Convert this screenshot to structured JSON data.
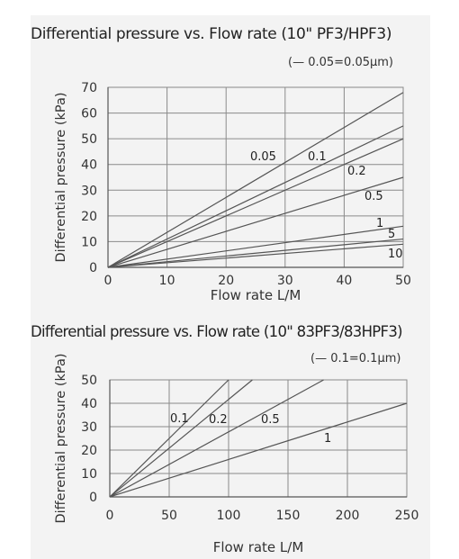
{
  "colors": {
    "line": "#555555",
    "grid": "#8a8a8a",
    "panel": "#f3f3f3",
    "text": "#333333"
  },
  "chart_data": [
    {
      "type": "line",
      "title": "Differential pressure vs. Flow rate (10\" PF3/HPF3)",
      "note": "(— 0.05=0.05µm)",
      "xlabel": "Flow rate L/M",
      "ylabel": "Differential pressure (kPa)",
      "xlim": [
        0,
        50
      ],
      "ylim": [
        0,
        70
      ],
      "xticks": [
        0,
        10,
        20,
        30,
        40,
        50
      ],
      "yticks": [
        0,
        10,
        20,
        30,
        40,
        50,
        60,
        70
      ],
      "grid": true,
      "series": [
        {
          "name": "0.05",
          "x": [
            0,
            50
          ],
          "y": [
            0,
            68
          ]
        },
        {
          "name": "0.1",
          "x": [
            0,
            50
          ],
          "y": [
            0,
            55
          ]
        },
        {
          "name": "0.2",
          "x": [
            0,
            50
          ],
          "y": [
            0,
            50
          ]
        },
        {
          "name": "0.5",
          "x": [
            0,
            50
          ],
          "y": [
            0,
            35
          ]
        },
        {
          "name": "1",
          "x": [
            0,
            50
          ],
          "y": [
            0,
            16
          ]
        },
        {
          "name": "5",
          "x": [
            0,
            50
          ],
          "y": [
            0,
            11
          ]
        },
        {
          "name": "10",
          "x": [
            0,
            50
          ],
          "y": [
            0,
            9
          ]
        }
      ]
    },
    {
      "type": "line",
      "title": "Differential pressure vs. Flow rate (10\" 83PF3/83HPF3)",
      "note": "(— 0.1=0.1µm)",
      "xlabel": "Flow rate L/M",
      "ylabel": "Differential pressure (kPa)",
      "xlim": [
        0,
        250
      ],
      "ylim": [
        0,
        50
      ],
      "xticks": [
        0,
        50,
        100,
        150,
        200,
        250
      ],
      "yticks": [
        0,
        10,
        20,
        30,
        40,
        50
      ],
      "grid": true,
      "series": [
        {
          "name": "0.1",
          "x": [
            0,
            100
          ],
          "y": [
            0,
            50
          ]
        },
        {
          "name": "0.2",
          "x": [
            0,
            120
          ],
          "y": [
            0,
            50
          ]
        },
        {
          "name": "0.5",
          "x": [
            0,
            180
          ],
          "y": [
            0,
            50
          ]
        },
        {
          "name": "1",
          "x": [
            0,
            250
          ],
          "y": [
            0,
            40
          ]
        }
      ]
    }
  ]
}
